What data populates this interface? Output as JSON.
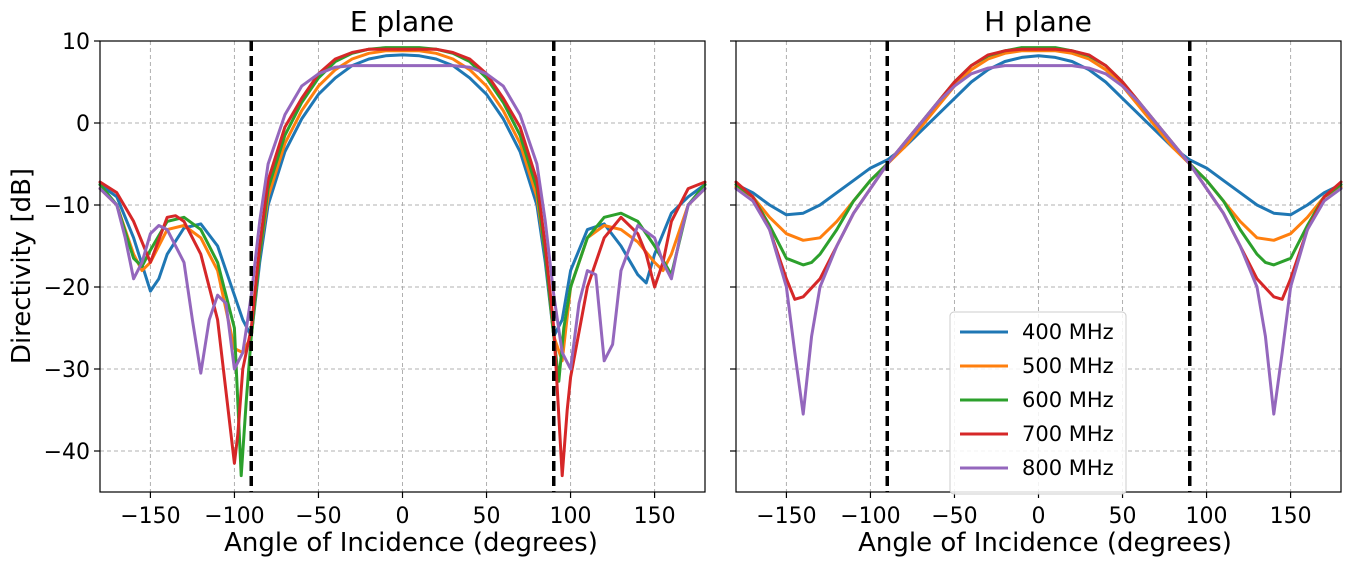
{
  "colors": {
    "400 MHz": "#1f77b4",
    "500 MHz": "#ff7f0e",
    "600 MHz": "#2ca02c",
    "700 MHz": "#d62728",
    "800 MHz": "#9467bd"
  },
  "chart_data": [
    {
      "type": "line",
      "title": "E plane",
      "xlabel": "Angle of Incidence (degrees)",
      "ylabel": "Directivity [dB]",
      "xlim": [
        -180,
        180
      ],
      "ylim": [
        -45,
        10
      ],
      "xticks": [
        -150,
        -100,
        -50,
        0,
        50,
        100,
        150
      ],
      "xtick_labels": [
        "−150",
        "−100",
        "−50",
        "0",
        "50",
        "100",
        "150"
      ],
      "yticks": [
        10,
        0,
        -10,
        -20,
        -30,
        -40
      ],
      "ytick_labels": [
        "10",
        "0",
        "−10",
        "−20",
        "−30",
        "−40"
      ],
      "grid": true,
      "vlines": [
        -90,
        90
      ],
      "series": [
        {
          "name": "400 MHz",
          "x": [
            -180,
            -170,
            -160,
            -150,
            -145,
            -140,
            -130,
            -120,
            -110,
            -100,
            -95,
            -90,
            -85,
            -80,
            -70,
            -60,
            -50,
            -40,
            -30,
            -20,
            -10,
            0,
            10,
            20,
            30,
            40,
            50,
            60,
            70,
            80,
            85,
            90,
            95,
            100,
            110,
            120,
            130,
            140,
            145,
            150,
            160,
            170,
            180
          ],
          "y": [
            -7.5,
            -9,
            -14,
            -20.5,
            -19,
            -16,
            -12.8,
            -12.3,
            -15,
            -21,
            -24,
            -26,
            -17,
            -10,
            -3.5,
            0.5,
            3.5,
            5.5,
            7,
            7.8,
            8.2,
            8.3,
            8.2,
            7.8,
            7,
            5.5,
            3.5,
            0.5,
            -3.5,
            -10,
            -17,
            -26,
            -24,
            -18,
            -13,
            -12.3,
            -15,
            -18.5,
            -19.5,
            -16,
            -11,
            -9,
            -7.5
          ]
        },
        {
          "name": "500 MHz",
          "x": [
            -180,
            -170,
            -160,
            -155,
            -150,
            -140,
            -130,
            -120,
            -110,
            -100,
            -95,
            -90,
            -85,
            -80,
            -70,
            -60,
            -50,
            -40,
            -30,
            -20,
            -10,
            0,
            10,
            20,
            30,
            40,
            50,
            60,
            70,
            80,
            85,
            90,
            95,
            100,
            110,
            120,
            130,
            140,
            150,
            155,
            160,
            170,
            180
          ],
          "y": [
            -8,
            -10,
            -16,
            -18,
            -17,
            -13,
            -12.5,
            -14,
            -18,
            -27.5,
            -28,
            -26,
            -16,
            -9,
            -2.5,
            1.5,
            4.5,
            6.5,
            7.8,
            8.5,
            8.8,
            8.8,
            8.8,
            8.5,
            7.8,
            6.5,
            4.5,
            1.5,
            -2.5,
            -9,
            -16,
            -26,
            -29,
            -20,
            -14,
            -12.5,
            -13,
            -14.5,
            -17,
            -18,
            -16,
            -10,
            -8
          ]
        },
        {
          "name": "600 MHz",
          "x": [
            -180,
            -170,
            -160,
            -155,
            -150,
            -140,
            -130,
            -120,
            -110,
            -100,
            -96,
            -93,
            -90,
            -85,
            -80,
            -70,
            -60,
            -50,
            -40,
            -30,
            -20,
            -10,
            0,
            10,
            20,
            30,
            40,
            50,
            60,
            70,
            80,
            85,
            90,
            93,
            96,
            100,
            110,
            120,
            130,
            140,
            150,
            160,
            170,
            180
          ],
          "y": [
            -7.5,
            -10,
            -16.5,
            -17.5,
            -15.5,
            -12,
            -11.5,
            -13,
            -17,
            -25,
            -43,
            -34,
            -26,
            -16,
            -8,
            -1.5,
            2.5,
            5.5,
            7.5,
            8.5,
            9,
            9.2,
            9.2,
            9.2,
            9,
            8.5,
            7.5,
            5.5,
            2.5,
            -1.5,
            -8,
            -16,
            -26,
            -31.5,
            -25,
            -20,
            -14,
            -11.5,
            -11,
            -12,
            -15,
            -18.5,
            -10,
            -7.5
          ]
        },
        {
          "name": "700 MHz",
          "x": [
            -180,
            -170,
            -160,
            -150,
            -140,
            -135,
            -130,
            -120,
            -110,
            -100,
            -98,
            -95,
            -90,
            -85,
            -80,
            -70,
            -60,
            -50,
            -40,
            -30,
            -20,
            -10,
            0,
            10,
            20,
            30,
            40,
            50,
            60,
            70,
            80,
            85,
            90,
            95,
            98,
            100,
            110,
            120,
            130,
            140,
            145,
            150,
            155,
            160,
            170,
            180
          ],
          "y": [
            -7.2,
            -8.5,
            -12,
            -17,
            -11.5,
            -11.3,
            -12,
            -16,
            -24,
            -41.5,
            -38,
            -30,
            -25,
            -15,
            -7,
            -0.5,
            3,
            6,
            7.8,
            8.6,
            9,
            9,
            9,
            9,
            9,
            8.6,
            7.8,
            6,
            3,
            -0.5,
            -7,
            -15,
            -25,
            -43,
            -35,
            -31,
            -20,
            -14,
            -11.5,
            -13.5,
            -16,
            -20,
            -17,
            -12,
            -8,
            -7.2
          ]
        },
        {
          "name": "800 MHz",
          "x": [
            -180,
            -170,
            -165,
            -160,
            -155,
            -150,
            -145,
            -140,
            -130,
            -125,
            -120,
            -115,
            -110,
            -105,
            -100,
            -95,
            -90,
            -85,
            -80,
            -70,
            -60,
            -50,
            -40,
            -30,
            -20,
            -10,
            0,
            10,
            20,
            30,
            40,
            50,
            60,
            70,
            80,
            85,
            90,
            95,
            100,
            105,
            110,
            115,
            120,
            125,
            130,
            140,
            150,
            155,
            160,
            165,
            170,
            180
          ],
          "y": [
            -8,
            -10,
            -14,
            -19,
            -17,
            -13.5,
            -12.5,
            -13,
            -17,
            -24,
            -30.5,
            -24,
            -21,
            -22,
            -30,
            -28,
            -21,
            -12,
            -5,
            1,
            4.5,
            6,
            6.8,
            7,
            7,
            7,
            7,
            7,
            7,
            7,
            6.8,
            6,
            4.5,
            1,
            -5,
            -12,
            -21,
            -28,
            -30,
            -22,
            -18,
            -18.5,
            -29,
            -27,
            -18,
            -12.5,
            -14,
            -17,
            -19,
            -14,
            -10,
            -8
          ]
        }
      ]
    },
    {
      "type": "line",
      "title": "H plane",
      "xlabel": "Angle of Incidence (degrees)",
      "xlim": [
        -180,
        180
      ],
      "ylim": [
        -45,
        10
      ],
      "xticks": [
        -150,
        -100,
        -50,
        0,
        50,
        100,
        150
      ],
      "xtick_labels": [
        "−150",
        "−100",
        "−50",
        "0",
        "50",
        "100",
        "150"
      ],
      "grid": true,
      "vlines": [
        -90,
        90
      ],
      "legend": "lower center",
      "series": [
        {
          "name": "400 MHz",
          "x": [
            -180,
            -170,
            -160,
            -150,
            -140,
            -130,
            -120,
            -110,
            -100,
            -90,
            -80,
            -70,
            -60,
            -50,
            -40,
            -30,
            -20,
            -10,
            0,
            10,
            20,
            30,
            40,
            50,
            60,
            70,
            80,
            90,
            100,
            110,
            120,
            130,
            140,
            150,
            160,
            170,
            180
          ],
          "y": [
            -7.5,
            -8.5,
            -10,
            -11.2,
            -11,
            -10,
            -8.5,
            -7,
            -5.5,
            -4.5,
            -3,
            -1,
            1,
            3,
            5,
            6.5,
            7.5,
            8,
            8.2,
            8,
            7.5,
            6.5,
            5,
            3,
            1,
            -1,
            -3,
            -4.5,
            -5.5,
            -7,
            -8.5,
            -10,
            -11,
            -11.2,
            -10,
            -8.5,
            -7.5
          ]
        },
        {
          "name": "500 MHz",
          "x": [
            -180,
            -170,
            -160,
            -150,
            -140,
            -130,
            -120,
            -110,
            -100,
            -90,
            -80,
            -70,
            -60,
            -50,
            -40,
            -30,
            -20,
            -10,
            0,
            10,
            20,
            30,
            40,
            50,
            60,
            70,
            80,
            90,
            100,
            110,
            120,
            130,
            140,
            150,
            160,
            170,
            180
          ],
          "y": [
            -7.8,
            -9,
            -11.5,
            -13.5,
            -14.3,
            -14,
            -12,
            -9.5,
            -7,
            -5,
            -3,
            -0.5,
            2,
            4.5,
            6.5,
            7.8,
            8.5,
            8.8,
            8.8,
            8.8,
            8.5,
            7.8,
            6.5,
            4.5,
            2,
            -0.5,
            -3,
            -5,
            -7,
            -9.5,
            -12,
            -14,
            -14.3,
            -13.5,
            -11.5,
            -9,
            -7.8
          ]
        },
        {
          "name": "600 MHz",
          "x": [
            -180,
            -170,
            -160,
            -150,
            -140,
            -135,
            -130,
            -120,
            -110,
            -100,
            -90,
            -80,
            -70,
            -60,
            -50,
            -40,
            -30,
            -20,
            -10,
            0,
            10,
            20,
            30,
            40,
            50,
            60,
            70,
            80,
            90,
            100,
            110,
            120,
            130,
            135,
            140,
            150,
            160,
            170,
            180
          ],
          "y": [
            -7.5,
            -9,
            -12.5,
            -16.5,
            -17.3,
            -17,
            -16,
            -13,
            -9.5,
            -7,
            -5,
            -2.5,
            0,
            2.5,
            5,
            7,
            8.2,
            8.8,
            9.2,
            9.2,
            9.2,
            8.8,
            8.2,
            7,
            5,
            2.5,
            0,
            -2.5,
            -5,
            -7,
            -9.5,
            -13,
            -16,
            -17,
            -17.3,
            -16.5,
            -12.5,
            -9,
            -7.5
          ]
        },
        {
          "name": "700 MHz",
          "x": [
            -180,
            -170,
            -160,
            -150,
            -145,
            -140,
            -130,
            -120,
            -110,
            -100,
            -90,
            -80,
            -70,
            -60,
            -50,
            -40,
            -30,
            -20,
            -10,
            0,
            10,
            20,
            30,
            40,
            50,
            60,
            70,
            80,
            90,
            100,
            110,
            120,
            130,
            140,
            145,
            150,
            160,
            170,
            180
          ],
          "y": [
            -7.2,
            -9,
            -13,
            -19,
            -21.5,
            -21.2,
            -19,
            -15,
            -11,
            -8,
            -5,
            -2.5,
            0,
            2.5,
            5,
            7,
            8.3,
            8.8,
            9,
            9,
            9,
            8.8,
            8.3,
            7,
            5,
            2.5,
            0,
            -2.5,
            -5,
            -8,
            -11,
            -15,
            -19,
            -21.2,
            -21.5,
            -19,
            -13,
            -9,
            -7.2
          ]
        },
        {
          "name": "800 MHz",
          "x": [
            -180,
            -170,
            -160,
            -150,
            -145,
            -140,
            -135,
            -130,
            -120,
            -110,
            -100,
            -90,
            -80,
            -70,
            -60,
            -50,
            -40,
            -30,
            -20,
            -10,
            0,
            10,
            20,
            30,
            40,
            50,
            60,
            70,
            80,
            90,
            100,
            110,
            120,
            130,
            135,
            140,
            145,
            150,
            160,
            170,
            180
          ],
          "y": [
            -8,
            -9.5,
            -13,
            -20,
            -28,
            -35.5,
            -26,
            -20,
            -15,
            -11,
            -8,
            -5,
            -2.5,
            0,
            2.5,
            4.5,
            6,
            6.7,
            7,
            7,
            7,
            7,
            7,
            6.7,
            6,
            4.5,
            2.5,
            0,
            -2.5,
            -5,
            -8,
            -11,
            -15,
            -20,
            -26,
            -35.5,
            -28,
            -20,
            -13,
            -9.5,
            -8
          ]
        }
      ]
    }
  ]
}
